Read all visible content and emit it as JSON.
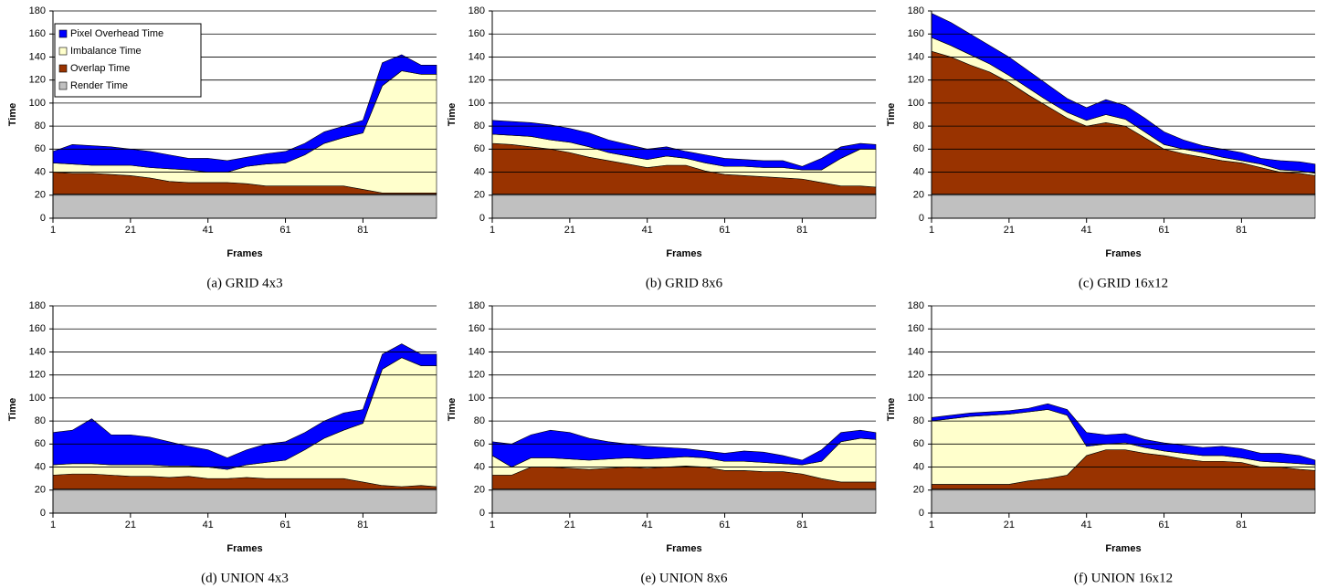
{
  "chart_data": [
    {
      "type": "stacked-area",
      "title": "(a) GRID 4x3",
      "xlabel": "Frames",
      "ylabel": "Time",
      "legend": "upper left",
      "x": [
        1,
        6,
        11,
        16,
        21,
        26,
        31,
        36,
        41,
        46,
        51,
        56,
        61,
        66,
        71,
        76,
        81,
        86,
        91,
        96,
        100
      ],
      "xlim": [
        1,
        100
      ],
      "ylim": [
        0,
        180
      ],
      "xticks": [
        1,
        21,
        41,
        61,
        81
      ],
      "yticks": [
        0,
        20,
        40,
        60,
        80,
        100,
        120,
        140,
        160,
        180
      ],
      "grid": true,
      "series": [
        {
          "name": "Render Time",
          "color": "#c0c0c0",
          "values": [
            21,
            21,
            21,
            21,
            21,
            21,
            21,
            21,
            21,
            21,
            21,
            21,
            21,
            21,
            21,
            21,
            21,
            21,
            21,
            21,
            21
          ]
        },
        {
          "name": "Overlap Time",
          "color": "#993300",
          "values": [
            19,
            18,
            18,
            17,
            16,
            14,
            11,
            10,
            10,
            10,
            9,
            7,
            7,
            7,
            7,
            7,
            4,
            1,
            1,
            1,
            1
          ]
        },
        {
          "name": "Imbalance Time",
          "color": "#ffffcc",
          "values": [
            8,
            8,
            7,
            8,
            9,
            9,
            11,
            11,
            9,
            9,
            15,
            19,
            20,
            27,
            37,
            42,
            49,
            93,
            106,
            103,
            103
          ]
        },
        {
          "name": "Pixel Overhead Time",
          "color": "#0000ff",
          "values": [
            10,
            17,
            17,
            16,
            14,
            14,
            12,
            10,
            12,
            10,
            8,
            9,
            10,
            10,
            10,
            10,
            11,
            20,
            14,
            8,
            8
          ]
        }
      ]
    },
    {
      "type": "stacked-area",
      "title": "(b) GRID 8x6",
      "xlabel": "Frames",
      "ylabel": "Time",
      "x": [
        1,
        6,
        11,
        16,
        21,
        26,
        31,
        36,
        41,
        46,
        51,
        56,
        61,
        66,
        71,
        76,
        81,
        86,
        91,
        96,
        100
      ],
      "xlim": [
        1,
        100
      ],
      "ylim": [
        0,
        180
      ],
      "xticks": [
        1,
        21,
        41,
        61,
        81
      ],
      "yticks": [
        0,
        20,
        40,
        60,
        80,
        100,
        120,
        140,
        160,
        180
      ],
      "grid": true,
      "series": [
        {
          "color": "#c0c0c0",
          "values": [
            21,
            21,
            21,
            21,
            21,
            21,
            21,
            21,
            21,
            21,
            21,
            21,
            21,
            21,
            21,
            21,
            21,
            21,
            21,
            21,
            21
          ]
        },
        {
          "color": "#993300",
          "values": [
            44,
            43,
            41,
            39,
            36,
            32,
            29,
            26,
            23,
            25,
            25,
            20,
            17,
            16,
            15,
            14,
            13,
            10,
            7,
            7,
            6
          ]
        },
        {
          "color": "#ffffcc",
          "values": [
            8,
            8,
            9,
            8,
            9,
            9,
            7,
            7,
            7,
            8,
            6,
            7,
            7,
            8,
            8,
            9,
            8,
            11,
            24,
            32,
            33
          ]
        },
        {
          "color": "#0000ff",
          "values": [
            12,
            12,
            12,
            13,
            12,
            12,
            11,
            10,
            9,
            8,
            6,
            7,
            7,
            6,
            6,
            6,
            3,
            10,
            10,
            5,
            4
          ]
        }
      ]
    },
    {
      "type": "stacked-area",
      "title": "(c) GRID 16x12",
      "xlabel": "Frames",
      "ylabel": "Time",
      "x": [
        1,
        6,
        11,
        16,
        21,
        26,
        31,
        36,
        41,
        46,
        51,
        56,
        61,
        66,
        71,
        76,
        81,
        86,
        91,
        96,
        100
      ],
      "xlim": [
        1,
        100
      ],
      "ylim": [
        0,
        180
      ],
      "xticks": [
        1,
        21,
        41,
        61,
        81
      ],
      "yticks": [
        0,
        20,
        40,
        60,
        80,
        100,
        120,
        140,
        160,
        180
      ],
      "grid": true,
      "series": [
        {
          "color": "#c0c0c0",
          "values": [
            21,
            21,
            21,
            21,
            21,
            21,
            21,
            21,
            21,
            21,
            21,
            21,
            21,
            21,
            21,
            21,
            21,
            21,
            21,
            21,
            21
          ]
        },
        {
          "color": "#993300",
          "values": [
            124,
            119,
            112,
            106,
            97,
            86,
            76,
            66,
            59,
            62,
            59,
            49,
            39,
            35,
            32,
            29,
            27,
            23,
            19,
            18,
            16
          ]
        },
        {
          "color": "#ffffcc",
          "values": [
            12,
            10,
            9,
            7,
            6,
            6,
            5,
            5,
            5,
            7,
            6,
            5,
            4,
            4,
            4,
            3,
            2,
            3,
            2,
            2,
            2
          ]
        },
        {
          "color": "#0000ff",
          "values": [
            21,
            20,
            18,
            16,
            16,
            15,
            14,
            12,
            11,
            13,
            12,
            12,
            11,
            8,
            6,
            7,
            7,
            5,
            8,
            8,
            8
          ]
        }
      ]
    },
    {
      "type": "stacked-area",
      "title": "(d) UNION 4x3",
      "xlabel": "Frames",
      "ylabel": "Time",
      "x": [
        1,
        6,
        11,
        16,
        21,
        26,
        31,
        36,
        41,
        46,
        51,
        56,
        61,
        66,
        71,
        76,
        81,
        86,
        91,
        96,
        100
      ],
      "xlim": [
        1,
        100
      ],
      "ylim": [
        0,
        180
      ],
      "xticks": [
        1,
        21,
        41,
        61,
        81
      ],
      "yticks": [
        0,
        20,
        40,
        60,
        80,
        100,
        120,
        140,
        160,
        180
      ],
      "grid": true,
      "series": [
        {
          "color": "#c0c0c0",
          "values": [
            21,
            21,
            21,
            21,
            21,
            21,
            21,
            21,
            21,
            21,
            21,
            21,
            21,
            21,
            21,
            21,
            21,
            21,
            21,
            21,
            21
          ]
        },
        {
          "color": "#993300",
          "values": [
            12,
            13,
            13,
            12,
            11,
            11,
            10,
            11,
            9,
            9,
            10,
            9,
            9,
            9,
            9,
            9,
            6,
            3,
            2,
            3,
            2
          ]
        },
        {
          "color": "#ffffcc",
          "values": [
            9,
            9,
            9,
            9,
            10,
            10,
            10,
            9,
            10,
            8,
            11,
            14,
            16,
            25,
            35,
            42,
            51,
            101,
            112,
            104,
            105
          ]
        },
        {
          "color": "#0000ff",
          "values": [
            28,
            29,
            39,
            26,
            26,
            24,
            21,
            17,
            15,
            10,
            13,
            16,
            16,
            15,
            15,
            15,
            12,
            13,
            12,
            10,
            10
          ]
        }
      ]
    },
    {
      "type": "stacked-area",
      "title": "(e) UNION 8x6",
      "xlabel": "Frames",
      "ylabel": "Time",
      "x": [
        1,
        6,
        11,
        16,
        21,
        26,
        31,
        36,
        41,
        46,
        51,
        56,
        61,
        66,
        71,
        76,
        81,
        86,
        91,
        96,
        100
      ],
      "xlim": [
        1,
        100
      ],
      "ylim": [
        0,
        180
      ],
      "xticks": [
        1,
        21,
        41,
        61,
        81
      ],
      "yticks": [
        0,
        20,
        40,
        60,
        80,
        100,
        120,
        140,
        160,
        180
      ],
      "grid": true,
      "series": [
        {
          "color": "#c0c0c0",
          "values": [
            21,
            21,
            21,
            21,
            21,
            21,
            21,
            21,
            21,
            21,
            21,
            21,
            21,
            21,
            21,
            21,
            21,
            21,
            21,
            21,
            21
          ]
        },
        {
          "color": "#993300",
          "values": [
            12,
            12,
            19,
            19,
            18,
            17,
            18,
            19,
            18,
            19,
            20,
            19,
            16,
            16,
            15,
            15,
            13,
            9,
            6,
            6,
            6
          ]
        },
        {
          "color": "#ffffcc",
          "values": [
            17,
            7,
            8,
            8,
            8,
            8,
            8,
            8,
            8,
            8,
            8,
            8,
            8,
            8,
            8,
            7,
            8,
            15,
            35,
            38,
            37
          ]
        },
        {
          "color": "#0000ff",
          "values": [
            12,
            20,
            20,
            24,
            23,
            19,
            15,
            12,
            11,
            9,
            7,
            6,
            7,
            9,
            9,
            7,
            4,
            10,
            8,
            7,
            6
          ]
        }
      ]
    },
    {
      "type": "stacked-area",
      "title": "(f) UNION 16x12",
      "xlabel": "Frames",
      "ylabel": "Time",
      "x": [
        1,
        6,
        11,
        16,
        21,
        26,
        31,
        36,
        41,
        46,
        51,
        56,
        61,
        66,
        71,
        76,
        81,
        86,
        91,
        96,
        100
      ],
      "xlim": [
        1,
        100
      ],
      "ylim": [
        0,
        180
      ],
      "xticks": [
        1,
        21,
        41,
        61,
        81
      ],
      "yticks": [
        0,
        20,
        40,
        60,
        80,
        100,
        120,
        140,
        160,
        180
      ],
      "grid": true,
      "series": [
        {
          "color": "#c0c0c0",
          "values": [
            21,
            21,
            21,
            21,
            21,
            21,
            21,
            21,
            21,
            21,
            21,
            21,
            21,
            21,
            21,
            21,
            21,
            21,
            21,
            21,
            21
          ]
        },
        {
          "color": "#993300",
          "values": [
            4,
            4,
            4,
            4,
            4,
            7,
            9,
            12,
            29,
            34,
            34,
            31,
            29,
            26,
            24,
            24,
            23,
            19,
            19,
            17,
            16
          ]
        },
        {
          "color": "#ffffcc",
          "values": [
            55,
            57,
            59,
            60,
            61,
            60,
            60,
            52,
            8,
            5,
            6,
            5,
            4,
            5,
            5,
            5,
            4,
            5,
            4,
            5,
            5
          ]
        },
        {
          "color": "#0000ff",
          "values": [
            3,
            3,
            3,
            3,
            3,
            3,
            5,
            5,
            12,
            8,
            8,
            7,
            7,
            7,
            7,
            8,
            8,
            7,
            8,
            7,
            4
          ]
        }
      ]
    }
  ]
}
